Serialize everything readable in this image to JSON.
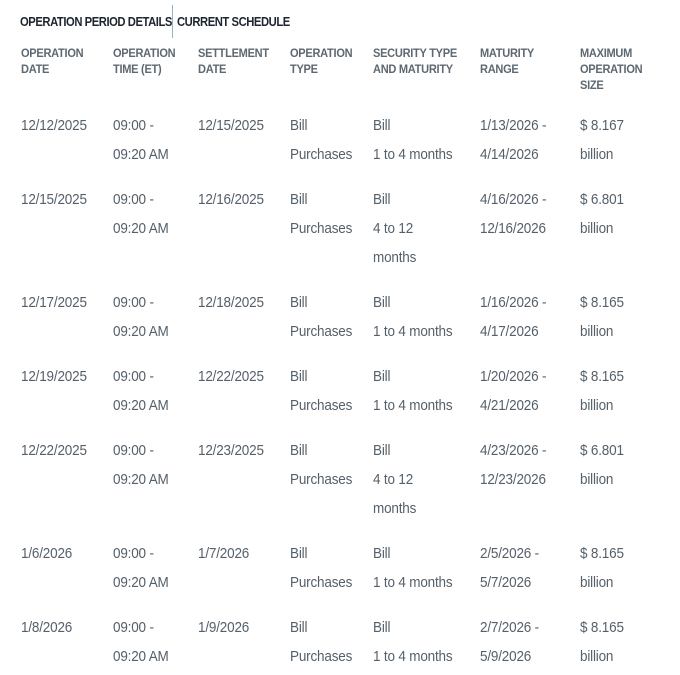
{
  "tabs": [
    "OPERATION PERIOD DETAILS",
    "CURRENT SCHEDULE"
  ],
  "headers": [
    [
      "OPERATION",
      "DATE"
    ],
    [
      "OPERATION",
      "TIME (ET)"
    ],
    [
      "SETTLEMENT",
      "DATE"
    ],
    [
      "OPERATION",
      "TYPE"
    ],
    [
      "SECURITY TYPE",
      "AND MATURITY"
    ],
    [
      "MATURITY",
      "RANGE"
    ],
    [
      "MAXIMUM",
      "OPERATION",
      "SIZE"
    ]
  ],
  "rows": [
    [
      [
        "12/12/2025"
      ],
      [
        "09:00 -",
        "09:20 AM"
      ],
      [
        "12/15/2025"
      ],
      [
        "Bill",
        "Purchases"
      ],
      [
        "Bill",
        "1 to 4 months"
      ],
      [
        "1/13/2026 -",
        "4/14/2026"
      ],
      [
        "$ 8.167",
        "billion"
      ]
    ],
    [
      [
        "12/15/2025"
      ],
      [
        "09:00 -",
        "09:20 AM"
      ],
      [
        "12/16/2025"
      ],
      [
        "Bill",
        "Purchases"
      ],
      [
        "Bill",
        "4 to 12",
        "months"
      ],
      [
        "4/16/2026 -",
        "12/16/2026"
      ],
      [
        "$ 6.801",
        "billion"
      ]
    ],
    [
      [
        "12/17/2025"
      ],
      [
        "09:00 -",
        "09:20 AM"
      ],
      [
        "12/18/2025"
      ],
      [
        "Bill",
        "Purchases"
      ],
      [
        "Bill",
        "1 to 4 months"
      ],
      [
        "1/16/2026 -",
        "4/17/2026"
      ],
      [
        "$ 8.165",
        "billion"
      ]
    ],
    [
      [
        "12/19/2025"
      ],
      [
        "09:00 -",
        "09:20 AM"
      ],
      [
        "12/22/2025"
      ],
      [
        "Bill",
        "Purchases"
      ],
      [
        "Bill",
        "1 to 4 months"
      ],
      [
        "1/20/2026 -",
        "4/21/2026"
      ],
      [
        "$ 8.165",
        "billion"
      ]
    ],
    [
      [
        "12/22/2025"
      ],
      [
        "09:00 -",
        "09:20 AM"
      ],
      [
        "12/23/2025"
      ],
      [
        "Bill",
        "Purchases"
      ],
      [
        "Bill",
        "4 to 12",
        "months"
      ],
      [
        "4/23/2026 -",
        "12/23/2026"
      ],
      [
        "$ 6.801",
        "billion"
      ]
    ],
    [
      [
        "1/6/2026"
      ],
      [
        "09:00 -",
        "09:20 AM"
      ],
      [
        "1/7/2026"
      ],
      [
        "Bill",
        "Purchases"
      ],
      [
        "Bill",
        "1 to 4 months"
      ],
      [
        "2/5/2026 -",
        "5/7/2026"
      ],
      [
        "$ 8.165",
        "billion"
      ]
    ],
    [
      [
        "1/8/2026"
      ],
      [
        "09:00 -",
        "09:20 AM"
      ],
      [
        "1/9/2026"
      ],
      [
        "Bill",
        "Purchases"
      ],
      [
        "Bill",
        "1 to 4 months"
      ],
      [
        "2/7/2026 -",
        "5/9/2026"
      ],
      [
        "$ 8.165",
        "billion"
      ]
    ]
  ]
}
